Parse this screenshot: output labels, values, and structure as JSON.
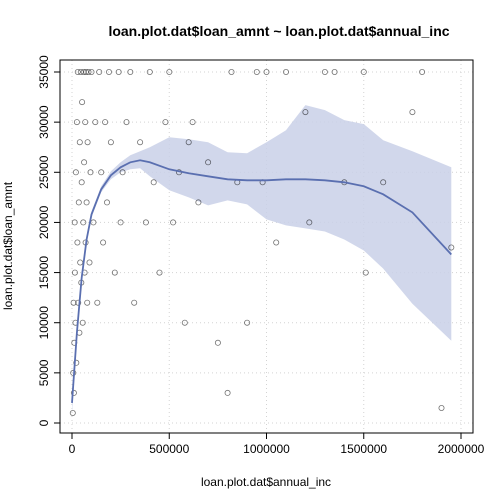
{
  "chart_data": {
    "type": "scatter",
    "title": "loan.plot.dat$loan_amnt ~ loan.plot.dat$annual_inc",
    "xlabel": "loan.plot.dat$annual_inc",
    "ylabel": "loan.plot.dat$loan_amnt",
    "xlim": [
      0,
      2000000
    ],
    "ylim": [
      0,
      35000
    ],
    "x_ticks": [
      0,
      500000,
      1000000,
      1500000,
      2000000
    ],
    "x_tick_labels": [
      "0",
      "500000",
      "1000000",
      "1500000",
      "2000000"
    ],
    "y_ticks": [
      0,
      5000,
      10000,
      15000,
      20000,
      25000,
      30000,
      35000
    ],
    "y_tick_labels": [
      "0",
      "5000",
      "10000",
      "15000",
      "20000",
      "25000",
      "30000",
      "35000"
    ],
    "grid": true,
    "point_style": "open-circle",
    "colors": {
      "points": "#000000",
      "smooth_line": "#5a6fb0",
      "confidence_band": "#c9d0e8",
      "grid": "#d3d3d3"
    },
    "series": [
      {
        "kind": "points",
        "x": [
          4000,
          6000,
          8000,
          10000,
          12000,
          14000,
          15000,
          18000,
          20000,
          22000,
          25000,
          28000,
          30000,
          32000,
          35000,
          38000,
          40000,
          42000,
          45000,
          48000,
          50000,
          52000,
          55000,
          58000,
          60000,
          62000,
          65000,
          68000,
          70000,
          72000,
          75000,
          78000,
          80000,
          85000,
          90000,
          95000,
          100000,
          110000,
          120000,
          130000,
          140000,
          150000,
          160000,
          170000,
          180000,
          190000,
          200000,
          220000,
          240000,
          250000,
          260000,
          280000,
          300000,
          320000,
          350000,
          380000,
          400000,
          420000,
          450000,
          480000,
          500000,
          520000,
          550000,
          580000,
          600000,
          620000,
          650000,
          700000,
          750000,
          800000,
          820000,
          850000,
          900000,
          950000,
          980000,
          1000000,
          1050000,
          1100000,
          1200000,
          1220000,
          1300000,
          1350000,
          1400000,
          1500000,
          1510000,
          1600000,
          1750000,
          1800000,
          1900000,
          1950000
        ],
        "y": [
          1000,
          5000,
          12000,
          3000,
          8000,
          20000,
          15000,
          10000,
          25000,
          6000,
          30000,
          18000,
          35000,
          12000,
          22000,
          9000,
          28000,
          16000,
          35000,
          14000,
          24000,
          32000,
          10000,
          20000,
          35000,
          26000,
          15000,
          30000,
          18000,
          35000,
          22000,
          12000,
          28000,
          35000,
          16000,
          25000,
          35000,
          20000,
          30000,
          12000,
          35000,
          25000,
          18000,
          30000,
          22000,
          35000,
          28000,
          15000,
          35000,
          20000,
          25000,
          30000,
          35000,
          12000,
          28000,
          20000,
          35000,
          24000,
          15000,
          30000,
          35000,
          20000,
          25000,
          10000,
          28000,
          30000,
          22000,
          26000,
          8000,
          3000,
          35000,
          24000,
          10000,
          35000,
          24000,
          35000,
          18000,
          35000,
          31000,
          20000,
          35000,
          35000,
          24000,
          35000,
          15000,
          24000,
          31000,
          35000,
          1500,
          17500
        ]
      },
      {
        "kind": "smooth",
        "x": [
          0,
          25000,
          50000,
          75000,
          100000,
          150000,
          200000,
          250000,
          300000,
          350000,
          400000,
          500000,
          600000,
          700000,
          800000,
          900000,
          1000000,
          1100000,
          1200000,
          1300000,
          1400000,
          1500000,
          1600000,
          1750000,
          1950000
        ],
        "y": [
          2000,
          9000,
          14500,
          18300,
          20800,
          23300,
          24700,
          25500,
          26000,
          26200,
          26000,
          25300,
          24900,
          24600,
          24300,
          24200,
          24200,
          24300,
          24300,
          24200,
          24000,
          23600,
          22800,
          21000,
          16800
        ],
        "lower": [
          1000,
          8500,
          14100,
          18000,
          20500,
          23000,
          24300,
          25000,
          25300,
          25400,
          24600,
          23200,
          22500,
          21700,
          22200,
          21800,
          20300,
          19700,
          19400,
          19100,
          18300,
          17200,
          15400,
          11900,
          8200
        ],
        "upper": [
          3000,
          9500,
          14900,
          18600,
          21100,
          23600,
          25100,
          26000,
          26700,
          27100,
          27500,
          28500,
          28300,
          28000,
          27000,
          26900,
          28000,
          29200,
          31700,
          31200,
          30200,
          29800,
          28200,
          27100,
          25500
        ]
      }
    ]
  }
}
